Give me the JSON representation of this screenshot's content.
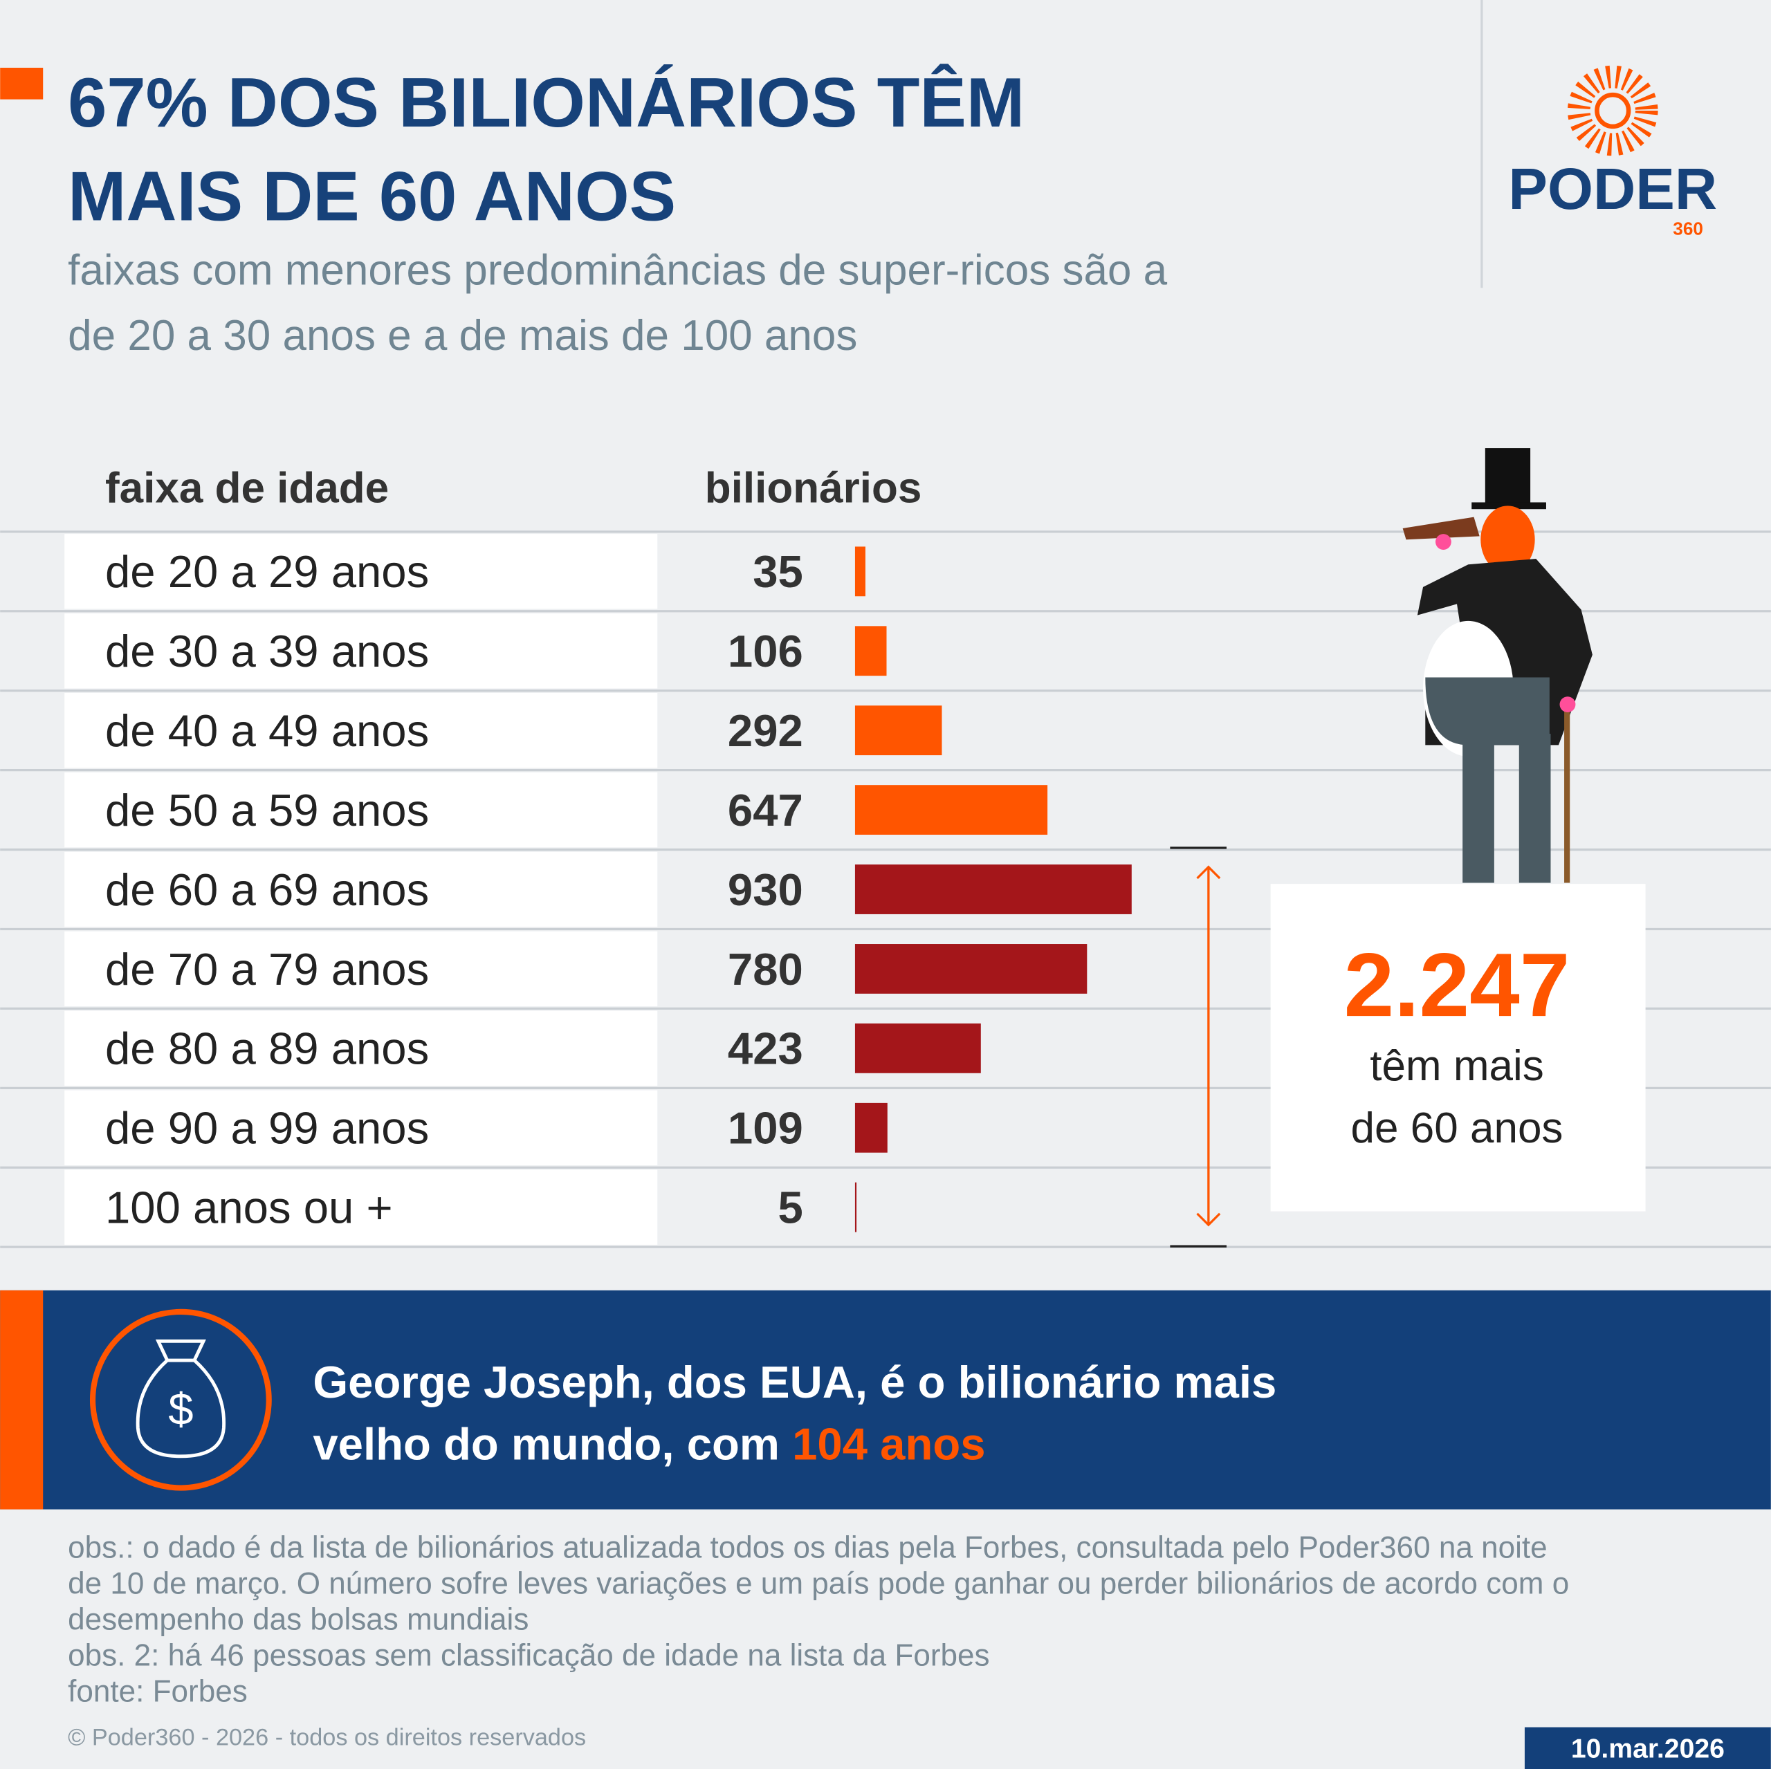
{
  "header": {
    "title_lines": [
      "67% DOS BILIONÁRIOS TÊM",
      "MAIS DE 60 ANOS"
    ],
    "subtitle_lines": [
      "faixas com menores predominâncias de super-ricos são a",
      "de 20 a 30 anos e a de mais de 100 anos"
    ],
    "logo": "PODER",
    "logo_sub": "360"
  },
  "chart_data": {
    "type": "bar",
    "orientation": "horizontal",
    "category_header": "faixa de idade",
    "value_header": "bilionários",
    "categories": [
      "de 20 a 29 anos",
      "de 30 a 39 anos",
      "de 40 a 49 anos",
      "de 50 a 59 anos",
      "de 60 a 69 anos",
      "de 70 a 79 anos",
      "de 80 a 89 anos",
      "de 90 a 99 anos",
      "100 anos ou +"
    ],
    "values": [
      35,
      106,
      292,
      647,
      930,
      780,
      423,
      109,
      5
    ],
    "colors": [
      "#ff5500",
      "#ff5500",
      "#ff5500",
      "#ff5500",
      "#a4161a",
      "#a4161a",
      "#a4161a",
      "#a4161a",
      "#a4161a"
    ]
  },
  "highlight": {
    "value": 2247,
    "label": "2.247",
    "text_lines": [
      "têm mais",
      "de 60 anos"
    ]
  },
  "banner": {
    "lines": [
      "George Joseph, dos EUA, é o bilionário mais",
      "velho do mundo, com"
    ],
    "emphasis": "104 anos"
  },
  "footer": {
    "notes": [
      "obs.: o dado é da lista de bilionários atualizada todos os dias pela Forbes, consultada pelo Poder360 na noite",
      "de 10 de março. O número sofre leves variações e um país pode ganhar ou perder bilionários de acordo com o",
      "desempenho das bolsas mundiais",
      "obs. 2: há 46 pessoas sem classificação de idade na lista da Forbes",
      "fonte: Forbes"
    ],
    "copyright": "© Poder360 - 2026 - todos os direitos reservados",
    "date": "10.mar.2026"
  }
}
